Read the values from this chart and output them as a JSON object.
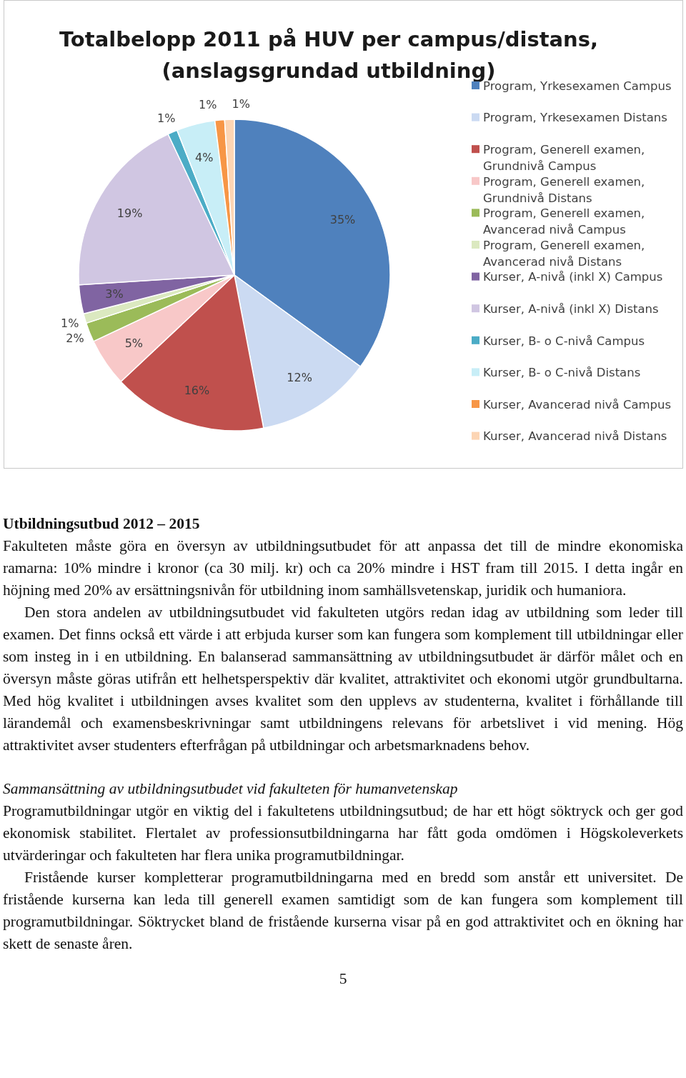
{
  "chart_data": {
    "type": "pie",
    "title": "Totalbelopp 2011 på HUV per campus/distans, (anslagsgrundad utbildning)",
    "categories": [
      "Program, Yrkesexamen Campus",
      "Program, Yrkesexamen Distans",
      "Program, Generell examen, Grundnivå Campus",
      "Program, Generell examen, Grundnivå Distans",
      "Program, Generell examen, Avancerad nivå Campus",
      "Program, Generell examen, Avancerad nivå Distans",
      "Kurser, A-nivå (inkl X) Campus",
      "Kurser, A-nivå (inkl X) Distans",
      "Kurser, B- o C-nivå Campus",
      "Kurser, B- o C-nivå Distans",
      "Kurser, Avancerad nivå Campus",
      "Kurser, Avancerad nivå Distans"
    ],
    "values": [
      35,
      12,
      16,
      5,
      2,
      1,
      3,
      19,
      1,
      4,
      1,
      1
    ],
    "colors": [
      "#4f81bd",
      "#cbdaf2",
      "#c0504d",
      "#f8c8c8",
      "#9bbb59",
      "#dbe9c0",
      "#8064a2",
      "#d0c6e2",
      "#4bacc6",
      "#c8eef7",
      "#f79646",
      "#fcd5b4"
    ],
    "value_labels": [
      "35%",
      "12%",
      "16%",
      "5%",
      "2%",
      "1%",
      "3%",
      "19%",
      "1%",
      "4%",
      "1%",
      "1%"
    ],
    "legend": "right",
    "annotations": [
      "Utbildningsutbud 2012 – 2015",
      "Fakulteten måste göra en översyn av utbildningsutbudet för att anpassa det till de mindre ekonomiska ramarna: 10% mindre i kronor (ca 30 milj. kr) och ca 20% mindre i HST fram till 2015. I detta ingår en höjning med 20% av ersättningsnivån för utbildning inom samhällsvetenskap, juridik och humaniora.",
      "Den stora andelen av utbildningsutbudet vid fakulteten utgörs redan idag av utbildning som leder till examen. Det finns också ett värde i att erbjuda kurser som kan fungera som komplement till utbildningar eller som insteg in i en utbildning. En balanserad sammansättning av utbildningsutbudet är därför målet och en översyn måste göras utifrån ett helhetsperspektiv där kvalitet, attraktivitet och ekonomi utgör grundbultarna. Med hög kvalitet i utbildningen avses kvalitet som den upplevs av studenterna, kvalitet i förhållande till lärandemål och examensbeskrivningar samt utbildningens relevans för arbetslivet i vid mening. Hög attraktivitet avser studenters efterfrågan på utbildningar och arbetsmarknadens behov.",
      "Sammansättning av utbildningsutbudet vid fakulteten för humanvetenskap",
      "Programutbildningar utgör en viktig del i fakultetens utbildningsutbud; de har ett högt söktryck och ger god ekonomisk stabilitet. Flertalet av professionsutbildningarna har fått goda omdömen i Högskoleverkets utvärderingar och fakulteten har flera unika programutbildningar.",
      "Fristående kurser kompletterar programutbildningarna med en bredd som anstår ett universitet. De fristående kurserna kan leda till generell examen samtidigt som de kan fungera som komplement till programutbildningar. Söktrycket bland de fristående kurserna visar på en god attraktivitet och en ökning har skett de senaste åren.",
      "5"
    ]
  }
}
